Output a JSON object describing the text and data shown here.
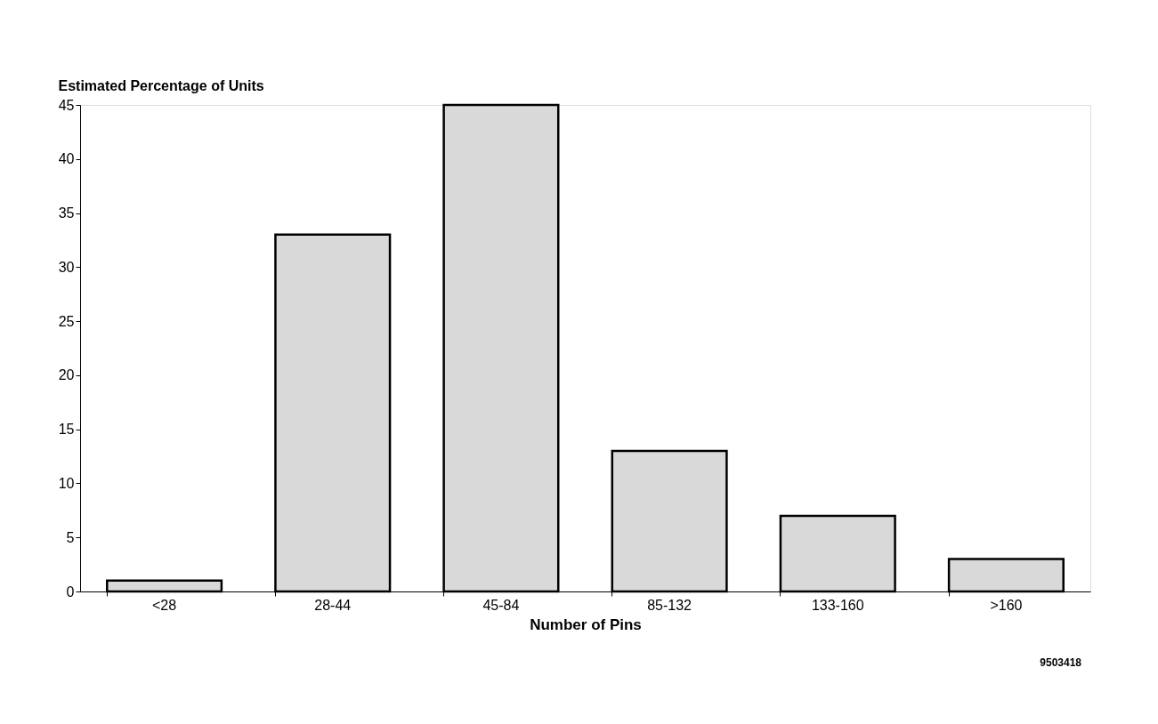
{
  "chart_data": {
    "type": "bar",
    "ylabel": "Estimated Percentage of Units",
    "xlabel": "Number of Pins",
    "categories": [
      "<28",
      "28-44",
      "45-84",
      "85-132",
      "133-160",
      ">160"
    ],
    "values": [
      1,
      33,
      45,
      13,
      7,
      3
    ],
    "color": "#d9d9d9",
    "ylim": [
      0,
      45
    ],
    "yticks": [
      0,
      5,
      10,
      15,
      20,
      25,
      30,
      35,
      40,
      45
    ],
    "grid": false,
    "annotations": [
      "9503418"
    ]
  }
}
